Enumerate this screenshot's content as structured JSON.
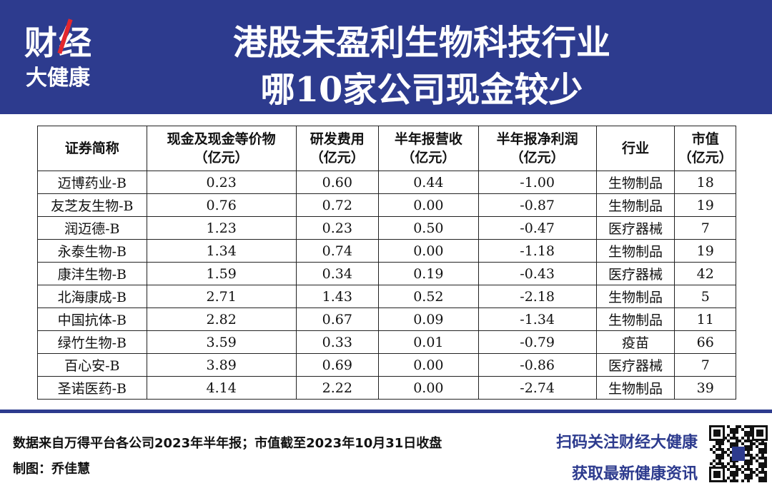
{
  "logo": {
    "line1": "财经",
    "line2": "大健康"
  },
  "header": {
    "title_line1": "港股未盈利生物科技行业",
    "title_line2": "哪10家公司现金较少"
  },
  "table": {
    "columns": [
      [
        "证券简称"
      ],
      [
        "现金及现金等价物",
        "（亿元）"
      ],
      [
        "研发费用",
        "（亿元）"
      ],
      [
        "半年报营收",
        "（亿元）"
      ],
      [
        "半年报净利润",
        "（亿元）"
      ],
      [
        "行业"
      ],
      [
        "市值",
        "（亿元）"
      ]
    ],
    "rows": [
      [
        "迈博药业-B",
        "0.23",
        "0.60",
        "0.44",
        "-1.00",
        "生物制品",
        "18"
      ],
      [
        "友芝友生物-B",
        "0.76",
        "0.72",
        "0.00",
        "-0.87",
        "生物制品",
        "19"
      ],
      [
        "润迈德-B",
        "1.23",
        "0.23",
        "0.50",
        "-0.47",
        "医疗器械",
        "7"
      ],
      [
        "永泰生物-B",
        "1.34",
        "0.74",
        "0.00",
        "-1.18",
        "生物制品",
        "19"
      ],
      [
        "康沣生物-B",
        "1.59",
        "0.34",
        "0.19",
        "-0.43",
        "医疗器械",
        "42"
      ],
      [
        "北海康成-B",
        "2.71",
        "1.43",
        "0.52",
        "-2.18",
        "生物制品",
        "5"
      ],
      [
        "中国抗体-B",
        "2.82",
        "0.67",
        "0.09",
        "-1.34",
        "生物制品",
        "11"
      ],
      [
        "绿竹生物-B",
        "3.59",
        "0.33",
        "0.01",
        "-0.79",
        "疫苗",
        "66"
      ],
      [
        "百心安-B",
        "3.89",
        "0.69",
        "0.00",
        "-0.86",
        "医疗器械",
        "7"
      ],
      [
        "圣诺医药-B",
        "4.14",
        "2.22",
        "0.00",
        "-2.74",
        "生物制品",
        "39"
      ]
    ]
  },
  "footer": {
    "source": "数据来自万得平台各公司2023年半年报；市值截至2023年10月31日收盘",
    "author": "制图：乔佳慧",
    "cta_line1": "扫码关注财经大健康",
    "cta_line2": "获取最新健康资讯"
  }
}
